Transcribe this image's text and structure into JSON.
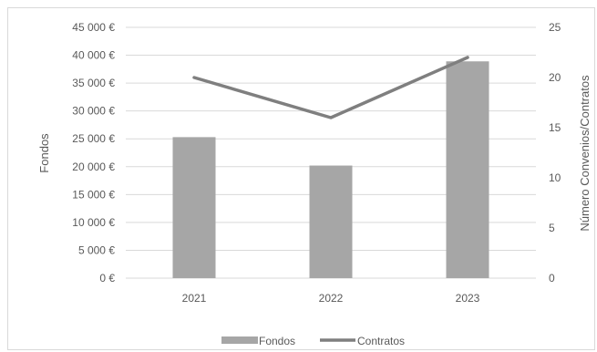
{
  "chart_data": {
    "type": "bar",
    "categories": [
      "2021",
      "2022",
      "2023"
    ],
    "series": [
      {
        "name": "Fondos",
        "type": "bar",
        "axis": "left",
        "values": [
          25300,
          20200,
          38900
        ],
        "color": "#a6a6a6"
      },
      {
        "name": "Contratos",
        "type": "line",
        "axis": "right",
        "values": [
          20,
          16,
          22
        ],
        "color": "#7f7f7f"
      }
    ],
    "ylabel": "Fondos",
    "y2label": "Número Convenios/Contratos",
    "ylim": [
      0,
      45000
    ],
    "y2lim": [
      0,
      25
    ],
    "yticks": [
      "0 €",
      "5 000 €",
      "10 000 €",
      "15 000 €",
      "20 000 €",
      "25 000 €",
      "30 000 €",
      "35 000 €",
      "40 000 €",
      "45 000 €"
    ],
    "y2ticks": [
      "0",
      "5",
      "10",
      "15",
      "20",
      "25"
    ],
    "grid": true,
    "legend": "bottom",
    "colors": {
      "grid": "#d9d9d9",
      "text": "#595959"
    }
  }
}
